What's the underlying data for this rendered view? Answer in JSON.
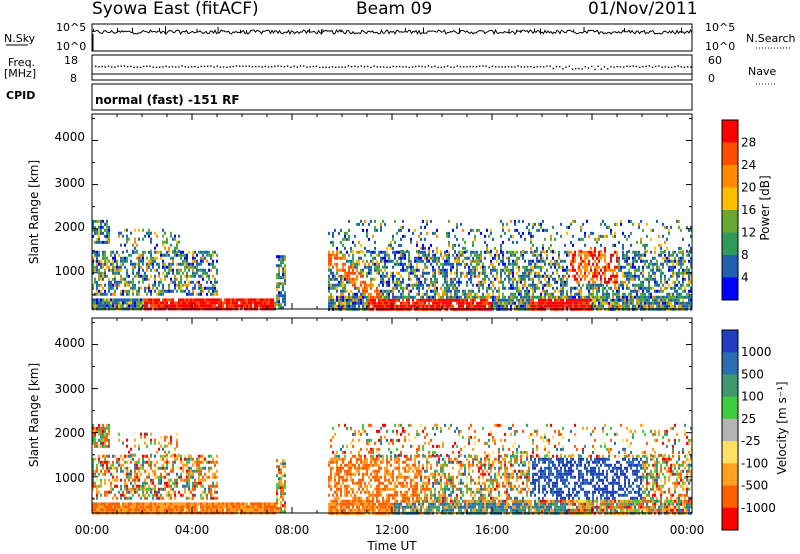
{
  "header": {
    "station": "Syowa East (fitACF)",
    "beam": "Beam 09",
    "date": "01/Nov/2011"
  },
  "params": {
    "nsky_label": "N.Sky",
    "nsky_ticks": [
      "10^5",
      "10^0"
    ],
    "nsearch_label": "N.Search",
    "nsearch_ticks": [
      "10^5",
      "10^0"
    ],
    "freq_label_1": "Freq.",
    "freq_label_2": "[MHz]",
    "freq_ticks": [
      "18",
      "8"
    ],
    "nave_label": "Nave",
    "nave_ticks": [
      "60",
      "0"
    ],
    "cpid_label": "CPID",
    "cpid_value": "normal (fast) -151 RF"
  },
  "chart_data": [
    {
      "type": "heatmap",
      "quantity": "power",
      "ylabel": "Slant Range [km]",
      "xlabel": "",
      "yticks": [
        "1000",
        "2000",
        "3000",
        "4000"
      ],
      "ylim": [
        180,
        4600
      ],
      "colorbar": {
        "label": "Power [dB]",
        "ticks": [
          "28",
          "24",
          "20",
          "16",
          "12",
          "8",
          "4"
        ],
        "colors": [
          "#ff0000",
          "#ff4d00",
          "#ff8c00",
          "#ffbf00",
          "#66a832",
          "#2f9a5a",
          "#2060b0",
          "#0000ff"
        ]
      }
    },
    {
      "type": "heatmap",
      "quantity": "velocity",
      "ylabel": "Slant Range [km]",
      "xlabel": "Time UT",
      "yticks": [
        "1000",
        "2000",
        "3000",
        "4000"
      ],
      "ylim": [
        180,
        4600
      ],
      "xticks": [
        "00:00",
        "04:00",
        "08:00",
        "12:00",
        "16:00",
        "20:00",
        "00:00"
      ],
      "colorbar": {
        "label": "Velocity [m s⁻¹]",
        "ticks": [
          "1000",
          "500",
          "100",
          "25",
          "-25",
          "-100",
          "-500",
          "-1000"
        ],
        "colors": [
          "#1f3fbf",
          "#2c6fb0",
          "#3c9a6e",
          "#3fcc3f",
          "#b4b4b4",
          "#ffe060",
          "#ffa020",
          "#ff6000",
          "#ff0000"
        ]
      }
    }
  ]
}
